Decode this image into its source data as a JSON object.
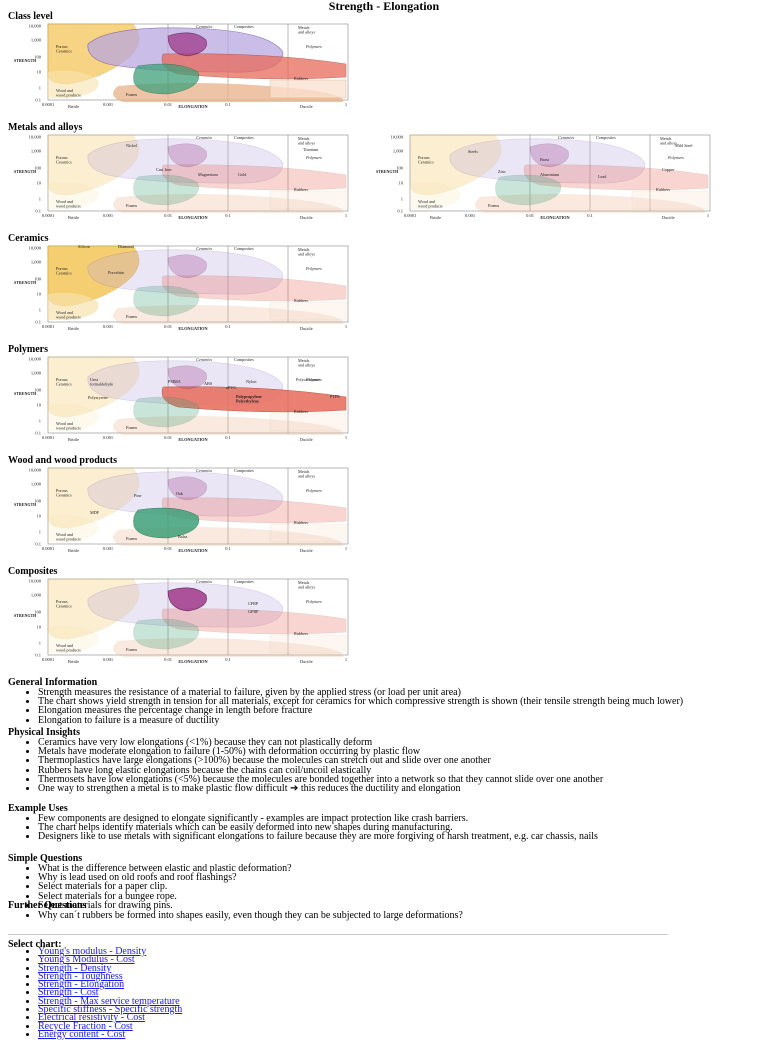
{
  "page_title": "Strength - Elongation",
  "chart_labels": {
    "y_top": "10,000",
    "y_1000": "1,000",
    "y_100": "100",
    "y_10": "10",
    "y_1": "1",
    "y_01": "0.1",
    "x_0001": "0.0001",
    "x_001": "0.001",
    "x_01": "0.01",
    "x_1": "0.1",
    "x_one": "1",
    "x_axis_title": "ELONGATION",
    "y_axis_title": "STRENGTH",
    "brittle": "Brittle",
    "ductile": "Ductile",
    "ceramics": "Ceramics",
    "composites": "Composites",
    "metals": "Metals\nand alloys",
    "polymers": "Polymers",
    "porous": "Porous\nCeramics",
    "wood": "Wood and\nwood products",
    "foams": "Foams",
    "rubbers": "Rubbers"
  },
  "sections": {
    "class_level": "Class level",
    "metals": "Metals and alloys",
    "ceramics": "Ceramics",
    "polymers": "Polymers",
    "wood": "Wood and wood products",
    "composites": "Composites"
  },
  "metals_labels": {
    "nickel": "Nickel",
    "cast_iron": "Cast Iron",
    "magnesium": "Magnesium",
    "gold": "Gold",
    "titanium": "Titanium",
    "steels": "Steels",
    "brass": "Brass",
    "zinc": "Zinc",
    "aluminium": "Aluminium",
    "lead": "Lead",
    "copper": "Copper",
    "mild_steel": "Mild Steel"
  },
  "ceramics_labels": {
    "silicon": "Silicon",
    "diamond": "Diamond",
    "porcelain": "Porcelain"
  },
  "polymer_labels": {
    "urea": "Urea\nformaldehyde",
    "pmma": "PMMA",
    "abs": "ABS",
    "nylon": "Nylon",
    "upvc": "uPVC",
    "polycarbonate": "Polycarbonate",
    "polystyrene": "Polystyrene",
    "polypropylene": "Polypropylene\nPolyethylene",
    "ptfe": "PTFE"
  },
  "wood_labels": {
    "pine": "Pine",
    "oak": "Oak",
    "mdf": "MDF",
    "balsa": "Balsa"
  },
  "composite_labels": {
    "cfrp": "CFRP",
    "gfrp": "GFRP"
  },
  "general": {
    "heading": "General Information",
    "items": [
      "Strength measures the resistance of a material to failure, given by the applied stress (or load per unit area)",
      "The chart shows yield strength in tension for all materials, except for ceramics for which compressive strength is shown (their tensile strength being much lower)",
      "Elongation measures the percentage change in length before fracture",
      "Elongation to failure is a measure of ductility"
    ]
  },
  "physical": {
    "heading": "Physical Insights",
    "items": [
      "Ceramics have very low elongations (<1%) because they can not plastically deform",
      "Metals have moderate elongation to failure (1-50%) with deformation occurring by plastic flow",
      "Thermoplastics have large elongations (>100%) because the molecules can stretch out and slide over one another",
      "Rubbers have long elastic elongations because the chains can coil/uncoil elastically",
      "Thermosets have low elongations (<5%) because the molecules are bonded together into a network so that they cannot slide over one another",
      "One way to strengthen a metal is to make plastic flow difficult ➔ this reduces the ductility and elongation"
    ]
  },
  "example": {
    "heading": "Example Uses",
    "items": [
      "Few components are designed to elongate significantly - examples are impact protection like crash barriers.",
      "The chart helps identify materials which can be easily deformed into new shapes during manufacturing.",
      "Designers like to use metals with significant elongations to failure because they are more forgiving of harsh treatment, e.g. car chassis, nails"
    ]
  },
  "simple": {
    "heading": "Simple Questions",
    "items": [
      "What is the difference between elastic and plastic deformation?",
      "Why is lead used on old roofs and roof flashings?",
      "Select materials for a paper clip.",
      "Select materials for a bungee rope.",
      "Select materials for drawing pins."
    ]
  },
  "further": {
    "heading": "Further Questions",
    "items": [
      "Why can´t rubbers be formed into shapes easily, even though they can be subjected to large deformations?"
    ]
  },
  "select": {
    "heading": "Select chart:",
    "links": [
      "Young's modulus - Density",
      "Young's Modulus - Cost",
      "Strength - Density",
      "Strength - Toughness",
      "Strength - Elongation",
      "Strength - Cost",
      "Strength - Max service temperature",
      "Specific stiffness - Specific strength",
      "Electrical resistivity - Cost",
      "Recycle Fraction - Cost",
      "Energy content - Cost"
    ]
  },
  "colors": {
    "ceramics": "#f5c65a",
    "metals": "#b9a7e0",
    "polymers": "#e86b5a",
    "composites": "#a0398a",
    "wood": "#3fa07a",
    "foams": "#e8b088",
    "link": "#1a1aee"
  }
}
